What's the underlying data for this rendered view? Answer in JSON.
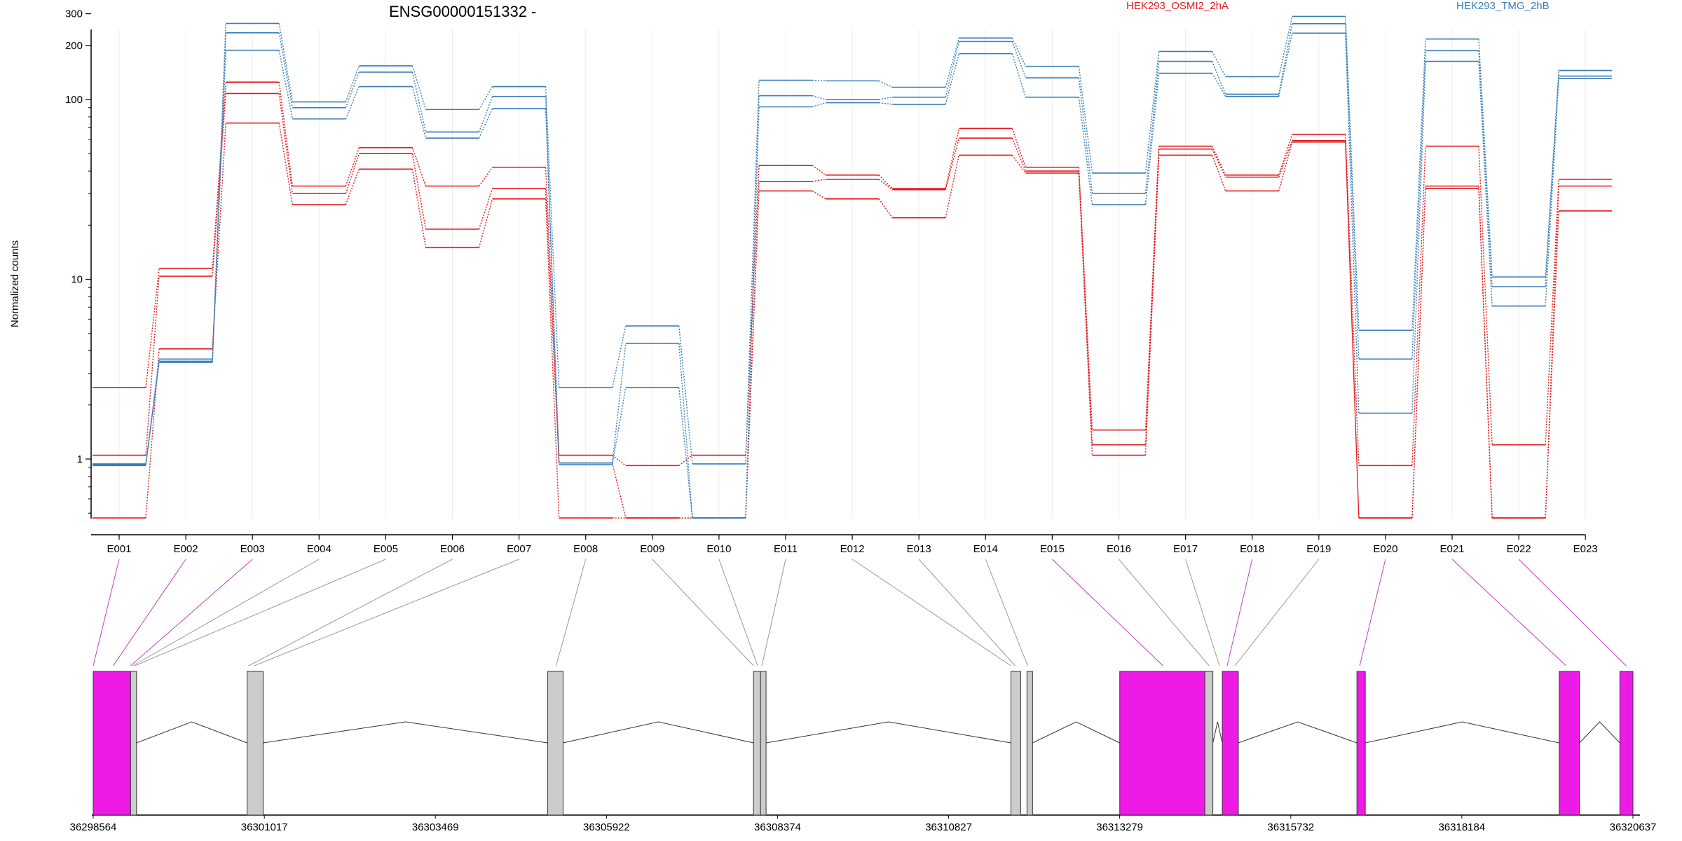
{
  "chart_data": {
    "type": "line",
    "title": "ENSG00000151332 -",
    "ylabel": "Normalized counts",
    "xlabel": "",
    "yscale": "log",
    "ylim": [
      0.45,
      380
    ],
    "yticks": [
      "1",
      "10",
      "100",
      "200",
      "300"
    ],
    "grid": "vertical",
    "legend_placement": "top",
    "categories": [
      "E001",
      "E002",
      "E003",
      "E004",
      "E005",
      "E006",
      "E007",
      "E008",
      "E009",
      "E010",
      "E011",
      "E012",
      "E013",
      "E014",
      "E015",
      "E016",
      "E017",
      "E018",
      "E019",
      "E020",
      "E021",
      "E022",
      "E023"
    ],
    "groups": [
      {
        "label": "HEK293_OSMI2_2hA",
        "color": "#e41a1c",
        "series": [
          {
            "values": [
              2.5,
              11.5,
              125,
              33,
              54,
              33,
              42,
              1.05,
              0.92,
              1.05,
              43,
              38,
              32,
              69,
              42,
              1.45,
              55,
              38,
              64,
              0.92,
              55,
              1.2,
              36
            ]
          },
          {
            "values": [
              1.05,
              10.4,
              108,
              30,
              50,
              19,
              32,
              0.95,
              0.47,
              0.47,
              35,
              36,
              31.5,
              61,
              40,
              1.2,
              53,
              37,
              59,
              0.47,
              33,
              0.47,
              33
            ]
          },
          {
            "values": [
              0.47,
              4.1,
              74,
              26,
              41,
              15,
              28,
              0.47,
              0.47,
              0.47,
              31,
              28,
              22,
              49,
              39,
              1.05,
              49,
              31,
              58,
              0.47,
              32,
              0.47,
              24
            ]
          }
        ]
      },
      {
        "label": "HEK293_TMG_2hB",
        "color": "#377eb8",
        "series": [
          {
            "values": [
              0.94,
              3.6,
              265,
              97,
              154,
              88,
              118,
              2.5,
              5.5,
              0.94,
              128,
              127,
              117,
              220,
              153,
              39,
              185,
              134,
              290,
              5.2,
              217,
              10.3,
              145
            ]
          },
          {
            "values": [
              0.93,
              3.5,
              235,
              90,
              142,
              66,
              104,
              0.95,
              4.4,
              0.47,
              105,
              100,
              103,
              210,
              132,
              30,
              163,
              107,
              264,
              3.6,
              187,
              9.1,
              135
            ]
          },
          {
            "values": [
              0.92,
              3.45,
              188,
              78,
              118,
              61,
              89,
              0.93,
              2.5,
              0.47,
              91,
              96,
              94,
              180,
              103,
              26,
              140,
              104,
              234,
              1.8,
              163,
              7.1,
              131
            ]
          }
        ]
      }
    ],
    "gene_model": {
      "coordinates": [
        "36298564",
        "36301017",
        "36303469",
        "36305922",
        "36308374",
        "36310827",
        "36313279",
        "36315732",
        "36318184",
        "36320637"
      ],
      "range": [
        36298564,
        36320637
      ],
      "highlight_color": "#ee1be6",
      "neutral_color": "#cccccc",
      "exons": [
        {
          "start": 36298564,
          "end": 36299100,
          "highlighted": true
        },
        {
          "start": 36299100,
          "end": 36299185,
          "highlighted": false
        },
        {
          "start": 36300770,
          "end": 36301000,
          "highlighted": false
        },
        {
          "start": 36305080,
          "end": 36305300,
          "highlighted": false
        },
        {
          "start": 36308030,
          "end": 36308130,
          "highlighted": false
        },
        {
          "start": 36308130,
          "end": 36308210,
          "highlighted": false
        },
        {
          "start": 36311720,
          "end": 36311860,
          "highlighted": false
        },
        {
          "start": 36311950,
          "end": 36312030,
          "highlighted": false
        },
        {
          "start": 36313280,
          "end": 36314500,
          "highlighted": true
        },
        {
          "start": 36314500,
          "end": 36314615,
          "highlighted": false
        },
        {
          "start": 36314750,
          "end": 36314980,
          "highlighted": true
        },
        {
          "start": 36316680,
          "end": 36316800,
          "highlighted": true
        },
        {
          "start": 36319580,
          "end": 36319870,
          "highlighted": true
        },
        {
          "start": 36320450,
          "end": 36320637,
          "highlighted": true
        }
      ],
      "feature_links": [
        {
          "bin": "E001",
          "pos": 36298564,
          "highlighted": true
        },
        {
          "bin": "E002",
          "pos": 36298850,
          "highlighted": true
        },
        {
          "bin": "E003",
          "pos": 36299100,
          "highlighted": true
        },
        {
          "bin": "E004",
          "pos": 36299130,
          "highlighted": false
        },
        {
          "bin": "E005",
          "pos": 36299160,
          "highlighted": false
        },
        {
          "bin": "E006",
          "pos": 36300790,
          "highlighted": false
        },
        {
          "bin": "E007",
          "pos": 36300870,
          "highlighted": false
        },
        {
          "bin": "E008",
          "pos": 36305200,
          "highlighted": false
        },
        {
          "bin": "E009",
          "pos": 36308030,
          "highlighted": false
        },
        {
          "bin": "E010",
          "pos": 36308090,
          "highlighted": false
        },
        {
          "bin": "E011",
          "pos": 36308150,
          "highlighted": false
        },
        {
          "bin": "E012",
          "pos": 36311720,
          "highlighted": false
        },
        {
          "bin": "E013",
          "pos": 36311780,
          "highlighted": false
        },
        {
          "bin": "E014",
          "pos": 36311960,
          "highlighted": false
        },
        {
          "bin": "E015",
          "pos": 36313900,
          "highlighted": true
        },
        {
          "bin": "E016",
          "pos": 36314560,
          "highlighted": false
        },
        {
          "bin": "E017",
          "pos": 36314710,
          "highlighted": false
        },
        {
          "bin": "E018",
          "pos": 36314820,
          "highlighted": true
        },
        {
          "bin": "E019",
          "pos": 36314930,
          "highlighted": false
        },
        {
          "bin": "E020",
          "pos": 36316720,
          "highlighted": true
        },
        {
          "bin": "E021",
          "pos": 36319680,
          "highlighted": true
        },
        {
          "bin": "E022",
          "pos": 36320540,
          "highlighted": true
        }
      ]
    }
  }
}
